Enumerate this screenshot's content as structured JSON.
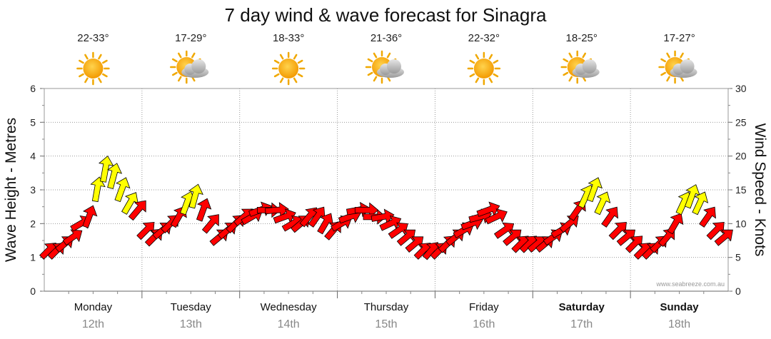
{
  "title": "7 day wind & wave forecast for Sinagra",
  "credit": "www.seabreeze.com.au",
  "colors": {
    "calm": "#22cc22",
    "moderate": "#ffff00",
    "strong": "#ff0000",
    "edge": "#000000",
    "grid": "#999999"
  },
  "chart_data": {
    "type": "arrow-timeseries",
    "title": "7 day wind & wave forecast for Sinagra",
    "ylabel_left": "Wave Height - Metres",
    "ylabel_right": "Wind Speed - Knots",
    "ylim_left": [
      0,
      6
    ],
    "ylim_right": [
      0,
      30
    ],
    "yticks_left": [
      "0",
      "1",
      "2",
      "3",
      "4",
      "5",
      "6"
    ],
    "yticks_right": [
      "0",
      "5",
      "10",
      "15",
      "20",
      "25",
      "30"
    ],
    "grid": true,
    "days": [
      {
        "day": "Monday",
        "date": "12th",
        "temp": "22-33°",
        "icon": "sun-icon",
        "bold": false
      },
      {
        "day": "Tuesday",
        "date": "13th",
        "temp": "17-29°",
        "icon": "sun-cloud-icon",
        "bold": false
      },
      {
        "day": "Wednesday",
        "date": "14th",
        "temp": "18-33°",
        "icon": "sun-icon",
        "bold": false
      },
      {
        "day": "Thursday",
        "date": "15th",
        "temp": "21-36°",
        "icon": "sun-cloud-icon",
        "bold": false
      },
      {
        "day": "Friday",
        "date": "16th",
        "temp": "22-32°",
        "icon": "sun-icon",
        "bold": false
      },
      {
        "day": "Saturday",
        "date": "17th",
        "temp": "18-25°",
        "icon": "sun-cloud-icon",
        "bold": true
      },
      {
        "day": "Sunday",
        "date": "18th",
        "temp": "17-27°",
        "icon": "sun-cloud-icon",
        "bold": true
      }
    ],
    "hours": [
      0,
      2,
      4,
      6,
      8,
      10,
      12,
      14,
      16,
      18,
      20,
      22
    ],
    "wind_kt": [
      [
        6,
        6,
        7,
        8,
        10,
        11,
        15,
        18,
        17,
        15,
        13,
        12
      ],
      [
        9,
        8,
        9,
        10,
        11,
        13,
        14,
        12,
        10,
        8,
        9,
        10
      ],
      [
        11,
        11,
        12,
        12,
        12,
        11,
        10,
        10,
        11,
        11,
        10,
        9
      ],
      [
        10,
        11,
        12,
        12,
        11,
        11,
        10,
        9,
        8,
        7,
        6,
        6
      ],
      [
        6,
        7,
        8,
        9,
        10,
        11,
        12,
        11,
        9,
        8,
        7,
        7
      ],
      [
        7,
        7,
        8,
        9,
        10,
        12,
        14,
        15,
        13,
        11,
        9,
        8
      ],
      [
        7,
        6,
        6,
        7,
        8,
        10,
        13,
        14,
        13,
        11,
        9,
        8
      ]
    ],
    "direction_deg": [
      [
        225,
        225,
        230,
        235,
        240,
        200,
        190,
        190,
        195,
        200,
        210,
        220
      ],
      [
        225,
        225,
        230,
        225,
        210,
        200,
        195,
        200,
        220,
        230,
        230,
        225
      ],
      [
        230,
        240,
        250,
        270,
        265,
        250,
        240,
        230,
        220,
        215,
        210,
        220
      ],
      [
        240,
        250,
        260,
        270,
        270,
        260,
        245,
        235,
        230,
        230,
        225,
        220
      ],
      [
        225,
        225,
        230,
        240,
        250,
        255,
        250,
        245,
        235,
        230,
        225,
        225
      ],
      [
        230,
        230,
        235,
        240,
        230,
        215,
        205,
        200,
        205,
        215,
        225,
        230
      ],
      [
        225,
        225,
        225,
        225,
        220,
        210,
        205,
        200,
        205,
        215,
        225,
        230
      ]
    ]
  }
}
